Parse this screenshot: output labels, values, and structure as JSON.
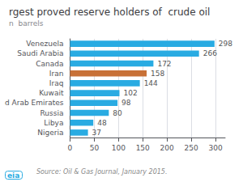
{
  "chart_data": {
    "type": "bar",
    "orientation": "horizontal",
    "title": "rgest proved reserve holders of  crude oil",
    "subtitle": "n  barrels",
    "annotations": [
      "Source: Oil & Gas Journal, January 2015.",
      "eia"
    ],
    "categories": [
      "Venezuela",
      "Saudi Arabia",
      "Canada",
      "Iran",
      "Iraq",
      "Kuwait",
      "d Arab Emirates",
      "Russia",
      "Libya",
      "Nigeria"
    ],
    "values": [
      298,
      266,
      172,
      158,
      144,
      102,
      98,
      80,
      48,
      37
    ],
    "colors": [
      "#29ABE2",
      "#29ABE2",
      "#29ABE2",
      "#C87137",
      "#29ABE2",
      "#29ABE2",
      "#29ABE2",
      "#29ABE2",
      "#29ABE2",
      "#29ABE2"
    ],
    "xlim": [
      0,
      320
    ],
    "xticks": [
      0,
      50,
      100,
      150,
      200,
      250,
      300
    ],
    "grid": true,
    "data_labels": true
  }
}
